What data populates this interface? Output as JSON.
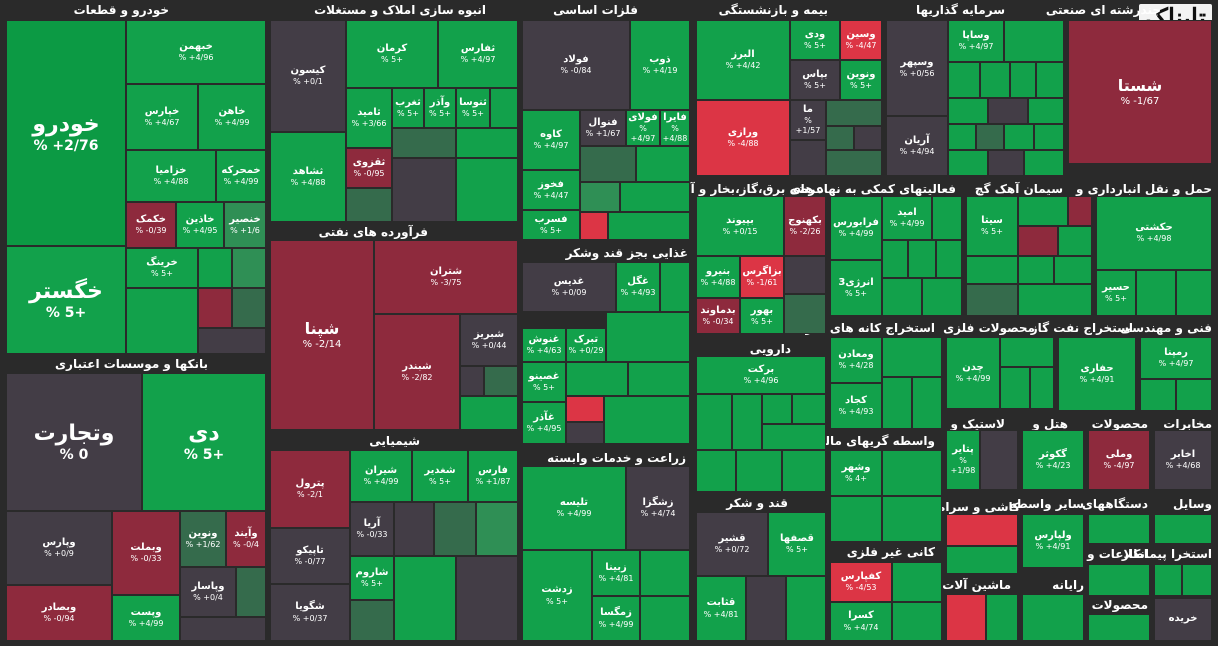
{
  "logo": "تابناک",
  "sections": {
    "auto": "خودرو و قطعات",
    "construction": "انبوه سازی املاک و مستغلات",
    "metals": "فلزات اساسی",
    "insurance": "بیمه و بازنشستگی",
    "investment": "سرمایه گذاریها",
    "multi": "چندرشته ای صنعتی",
    "banks": "بانکها و موسسات اعتباری",
    "refinery": "فرآورده های نفتی",
    "food": "غذایی بجز قند وشکر",
    "electricity": "عرضه برق،گاز،بخار و آب گرم",
    "financial_aux": "فعالیتهای کمکی به نهاد های",
    "cement": "سیمان آهک گچ",
    "transport": "حمل و نقل انبارداری و",
    "tech": "فنی و مهندسی",
    "mining": "استخراج کانه های فلزی",
    "metal_products": "محصولات فلزی",
    "oil_extraction": "استخراج نفت گاز",
    "pharma": "دارویی",
    "agriculture": "زراعت و خدمات وابسته",
    "chemical": "شیمیایی",
    "sugar": "قند و شکر",
    "leasing": "واسطه گریهای مالی و",
    "rubber": "لاستیک و",
    "hotel": "هتل و",
    "products": "محصولات",
    "comms": "مخابرات",
    "ceramic": "کاشی و سرامیک",
    "other_intermediary": "سایر واسطه",
    "devices": "دستگاههای",
    "nonmetal": "کانی غیر فلزی",
    "machinery": "ماشین آلات و",
    "computer": "رایانه",
    "info": "اطلاعات و",
    "contractor": "استخرا پیمانکار",
    "tools": "وسایل",
    "products2": "محصولات"
  },
  "tiles": {
    "khodro": {
      "name": "خودرو",
      "change": "% +2/76"
    },
    "khegostar": {
      "name": "خگستر",
      "change": "% 5+"
    },
    "khebahman": {
      "name": "خبهمن",
      "change": "% +4/96"
    },
    "khapars": {
      "name": "خپارس",
      "change": "% +4/67"
    },
    "khahen": {
      "name": "خاهن",
      "change": "% +4/99"
    },
    "khazamia": {
      "name": "خزامیا",
      "change": "% +4/88"
    },
    "khmoharekeh": {
      "name": "خمحرکه",
      "change": "% +4/99"
    },
    "khekomak": {
      "name": "خکمک",
      "change": "% -0/39"
    },
    "khadin": {
      "name": "خاذین",
      "change": "% +4/95"
    },
    "khensoor": {
      "name": "خنصیر",
      "change": "% +1/6"
    },
    "kharing": {
      "name": "خرینگ",
      "change": "% 5+"
    },
    "kisavan": {
      "name": "کیسون",
      "change": "% +0/1"
    },
    "kerman": {
      "name": "کرمان",
      "change": "% 5+"
    },
    "saghfarse": {
      "name": "ثفارس",
      "change": "% +4/97"
    },
    "sameed": {
      "name": "ثامید",
      "change": "% +3/66"
    },
    "saghrab": {
      "name": "ثغرب",
      "change": "% 5+"
    },
    "vaazar": {
      "name": "وآذر",
      "change": "% 5+"
    },
    "sanoosa": {
      "name": "ثنوسا",
      "change": "% 5+"
    },
    "tashahed": {
      "name": "ثشاهد",
      "change": "% +4/88"
    },
    "saghzavi": {
      "name": "ثقزوی",
      "change": "% -0/95"
    },
    "foolad": {
      "name": "فولاد",
      "change": "% -0/84"
    },
    "zob": {
      "name": "ذوب",
      "change": "% +4/19"
    },
    "kaveh": {
      "name": "کاوه",
      "change": "% +4/97"
    },
    "foonal": {
      "name": "فنوال",
      "change": "% +1/67"
    },
    "folay": {
      "name": "فولای",
      "change": "% +4/97"
    },
    "fayra": {
      "name": "فایرا",
      "change": "% +4/88"
    },
    "fakhooz": {
      "name": "فخوز",
      "change": "% +4/47"
    },
    "fesarb": {
      "name": "فسرب",
      "change": "% 5+"
    },
    "alborz": {
      "name": "البرز",
      "change": "% +4/42"
    },
    "vady": {
      "name": "ودی",
      "change": "% 5+"
    },
    "vasin": {
      "name": "وسین",
      "change": "% -4/47"
    },
    "bapas": {
      "name": "بپاس",
      "change": "% 5+"
    },
    "vanovin": {
      "name": "ونوین",
      "change": "% 5+"
    },
    "varazi": {
      "name": "ورازی",
      "change": "% -4/88"
    },
    "ma": {
      "name": "ما",
      "change": "% +1/57"
    },
    "vasapa": {
      "name": "وساپا",
      "change": "% +4/97"
    },
    "vasepehr": {
      "name": "وسپهر",
      "change": "% +0/56"
    },
    "arian": {
      "name": "آریان",
      "change": "% +4/94"
    },
    "shasta": {
      "name": "شستا",
      "change": "% -1/67"
    },
    "vtejarat": {
      "name": "وتجارت",
      "change": "% 0"
    },
    "dey": {
      "name": "دی",
      "change": "% 5+"
    },
    "vaparis": {
      "name": "وپارس",
      "change": "% +0/9"
    },
    "vabmelat": {
      "name": "وبملت",
      "change": "% -0/33"
    },
    "vnovin2": {
      "name": "ونوین",
      "change": "% +1/62"
    },
    "vaiand": {
      "name": "وآیند",
      "change": "% -0/4"
    },
    "vasaderat": {
      "name": "وبصادر",
      "change": "% -0/94"
    },
    "vpasar": {
      "name": "وپاسار",
      "change": "% +0/4"
    },
    "vpast": {
      "name": "وپست",
      "change": "% +4/99"
    },
    "shepna": {
      "name": "شپنا",
      "change": "% -2/14"
    },
    "shetran": {
      "name": "شتران",
      "change": "% -3/75"
    },
    "shebandar": {
      "name": "شبندر",
      "change": "% -2/82"
    },
    "shabriz": {
      "name": "شبریز",
      "change": "% +0/44"
    },
    "ghedis": {
      "name": "غدیس",
      "change": "% +0/09"
    },
    "ghegol": {
      "name": "غگل",
      "change": "% +4/93"
    },
    "ghoonash": {
      "name": "غنوش",
      "change": "% +4/63"
    },
    "tabark": {
      "name": "تبرک",
      "change": "% +0/29"
    },
    "ghesino": {
      "name": "غصینو",
      "change": "% 5+"
    },
    "ghazar": {
      "name": "غآذر",
      "change": "% +4/95"
    },
    "bapeyvand": {
      "name": "بپیوند",
      "change": "% +0/15"
    },
    "bakahnouj": {
      "name": "بکهنوج",
      "change": "% -2/26"
    },
    "banir": {
      "name": "بنیرو",
      "change": "% +4/88"
    },
    "bazagros": {
      "name": "بزاگرس",
      "change": "% -1/61"
    },
    "badamavand": {
      "name": "بدماوند",
      "change": "% -0/34"
    },
    "bavoor": {
      "name": "بهور",
      "change": "% 5+"
    },
    "farabours": {
      "name": "فرابورس",
      "change": "% +4/99"
    },
    "omid": {
      "name": "امید",
      "change": "% +4/99"
    },
    "enerzhi3": {
      "name": "انرژی3",
      "change": "% 5+"
    },
    "sita": {
      "name": "سیتا",
      "change": "% 5+"
    },
    "hakashti": {
      "name": "حکشتی",
      "change": "% +4/98"
    },
    "hasir": {
      "name": "حسیر",
      "change": "% 5+"
    },
    "tamaadan": {
      "name": "ومعادن",
      "change": "% +4/28"
    },
    "kegad": {
      "name": "کجاد",
      "change": "% +4/93"
    },
    "chadan": {
      "name": "چدن",
      "change": "% +4/99"
    },
    "hafari": {
      "name": "حفاری",
      "change": "% +4/91"
    },
    "rampna": {
      "name": "رمپنا",
      "change": "% +4/97"
    },
    "barakat": {
      "name": "برکت",
      "change": "% +4/96"
    },
    "talise": {
      "name": "تلیسه",
      "change": "% +4/99"
    },
    "zeshgeza": {
      "name": "زشگزا",
      "change": "% +4/74"
    },
    "zedasht": {
      "name": "زدشت",
      "change": "% 5+"
    },
    "zibna": {
      "name": "زبینا",
      "change": "% +4/81"
    },
    "zemgasa": {
      "name": "زمگسا",
      "change": "% +4/99"
    },
    "peterol": {
      "name": "پترول",
      "change": "% -2/1"
    },
    "shiran": {
      "name": "شیران",
      "change": "% +4/99"
    },
    "shghadir": {
      "name": "شغدیر",
      "change": "% 5+"
    },
    "fars": {
      "name": "فارس",
      "change": "% +1/87"
    },
    "arya": {
      "name": "آریا",
      "change": "% -0/33"
    },
    "tapiko": {
      "name": "تاپیکو",
      "change": "% -0/77"
    },
    "sharoom": {
      "name": "شاروم",
      "change": "% 5+"
    },
    "shgooya": {
      "name": "شگویا",
      "change": "% +0/37"
    },
    "ghoshir": {
      "name": "قشیر",
      "change": "% +0/72"
    },
    "ghasafha": {
      "name": "قصفها",
      "change": "% 5+"
    },
    "ghesabet": {
      "name": "قثابت",
      "change": "% +4/81"
    },
    "vashehr": {
      "name": "وشهر",
      "change": "% 4+"
    },
    "kefaris": {
      "name": "کفپارس",
      "change": "% -4/53"
    },
    "kesara": {
      "name": "کسرا",
      "change": "% +4/74"
    },
    "patabir": {
      "name": "پتایر",
      "change": "% +1/98"
    },
    "gekoozar": {
      "name": "گکوثر",
      "change": "% +4/23"
    },
    "vamali": {
      "name": "وملی",
      "change": "% -4/97"
    },
    "akhaber": {
      "name": "اخابر",
      "change": "% +4/68"
    },
    "valeparis": {
      "name": "ولپارس",
      "change": "% +4/91"
    },
    "kharide": {
      "name": "خریده",
      "change": ""
    }
  }
}
